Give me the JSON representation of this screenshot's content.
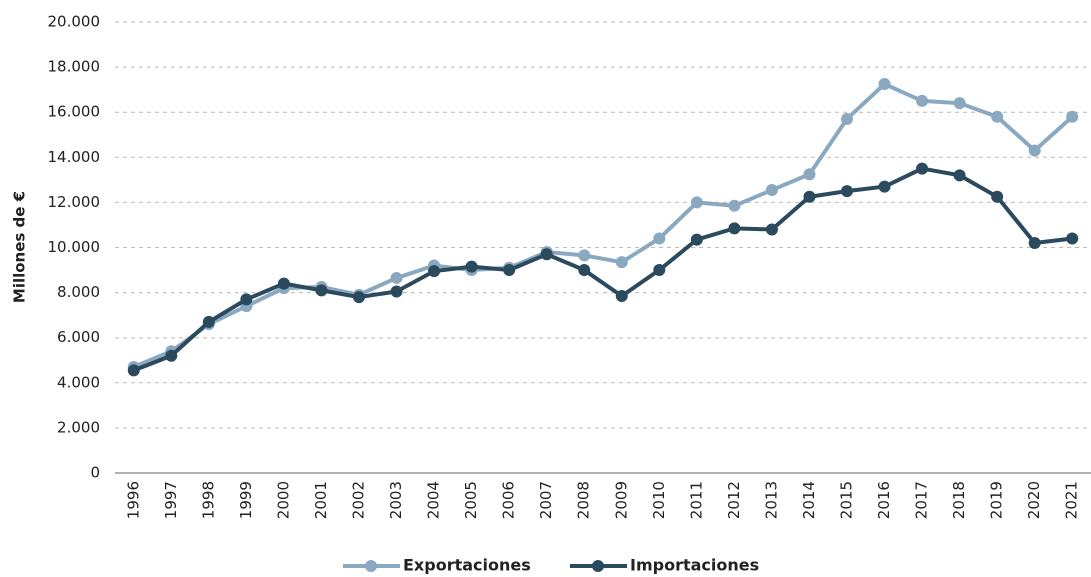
{
  "chart_data": {
    "type": "line",
    "y_label": "Millones de €",
    "categories": [
      "1996",
      "1997",
      "1998",
      "1999",
      "2000",
      "2001",
      "2002",
      "2003",
      "2004",
      "2005",
      "2006",
      "2007",
      "2008",
      "2009",
      "2010",
      "2011",
      "2012",
      "2013",
      "2014",
      "2015",
      "2016",
      "2017",
      "2018",
      "2019",
      "2020",
      "2021"
    ],
    "series": [
      {
        "name": "Exportaciones",
        "color": "#8aa9c1",
        "values": [
          4700,
          5400,
          6600,
          7400,
          8200,
          8250,
          7900,
          8650,
          9200,
          9000,
          9100,
          9800,
          9650,
          9350,
          10400,
          12000,
          11850,
          12550,
          13250,
          15700,
          17250,
          16500,
          16400,
          15800,
          14300,
          15800
        ]
      },
      {
        "name": "Importaciones",
        "color": "#2c4a5e",
        "values": [
          4550,
          5200,
          6700,
          7700,
          8400,
          8100,
          7800,
          8050,
          8950,
          9150,
          9000,
          9700,
          9000,
          7850,
          9000,
          10350,
          10850,
          10800,
          12250,
          12500,
          12700,
          13500,
          13200,
          12250,
          10200,
          10400
        ]
      }
    ],
    "ylim": [
      0,
      20000
    ],
    "yticks": [
      0,
      {
        "value": 2000,
        "label": "2.000"
      },
      {
        "value": 4000,
        "label": "4.000"
      },
      {
        "value": 6000,
        "label": "6.000"
      },
      {
        "value": 8000,
        "label": "8.000"
      },
      {
        "value": 10000,
        "label": "10.000"
      },
      {
        "value": 12000,
        "label": "12.000"
      },
      {
        "value": 14000,
        "label": "14.000"
      },
      {
        "value": 16000,
        "label": "16.000"
      },
      {
        "value": 18000,
        "label": "18.000"
      },
      {
        "value": 20000,
        "label": "20.000"
      }
    ],
    "grid": true,
    "legend": "bottom"
  }
}
